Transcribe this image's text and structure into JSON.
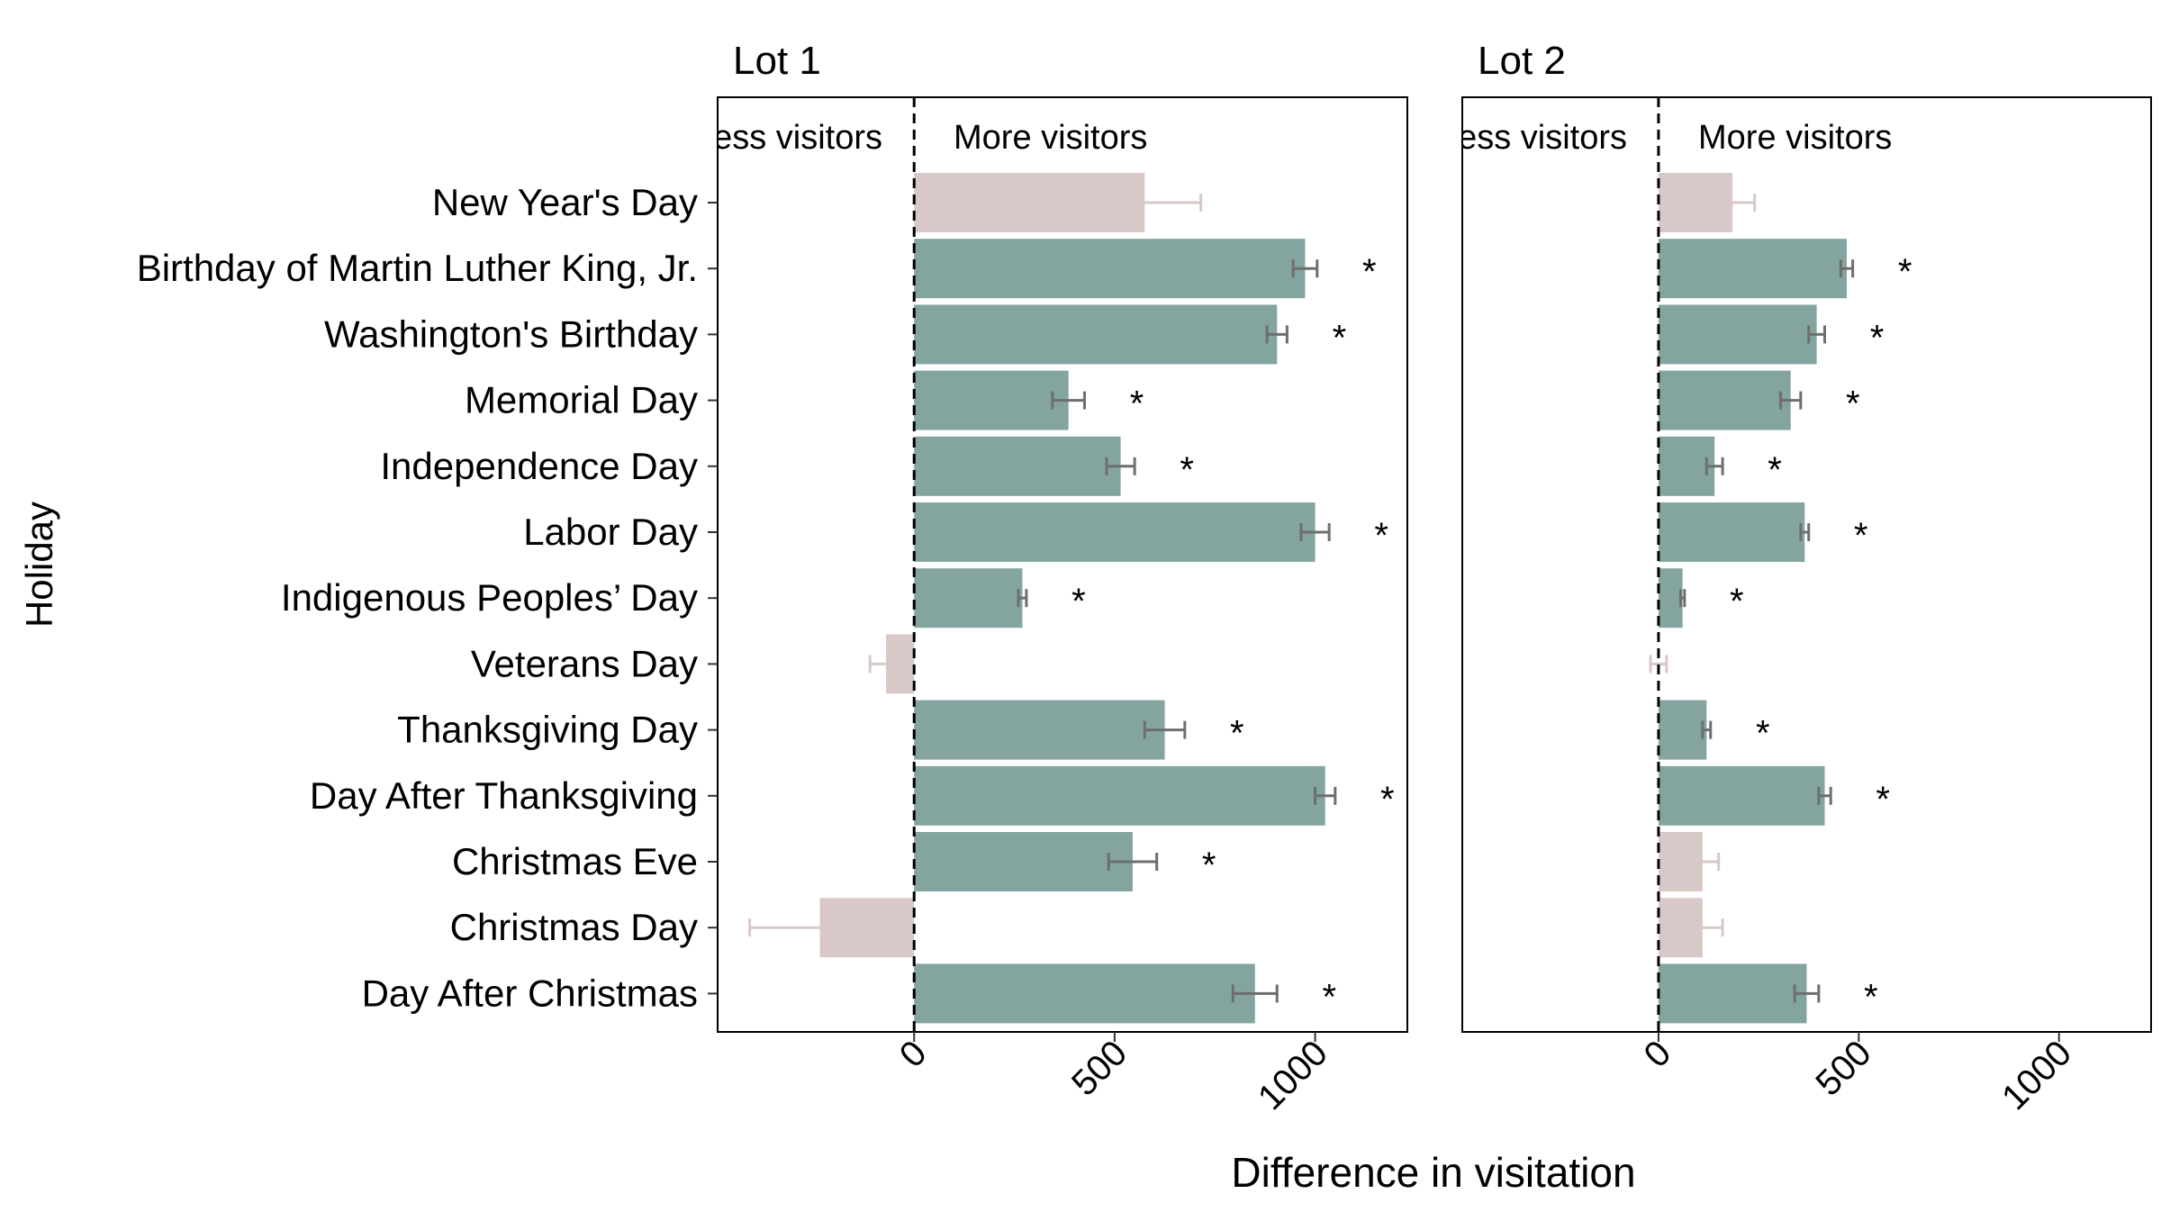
{
  "chart_data": {
    "type": "bar",
    "orientation": "horizontal",
    "ylabel": "Holiday",
    "xlabel": "Difference in visitation",
    "xlim": [
      -490,
      1230
    ],
    "xticks": [
      0,
      500,
      1000
    ],
    "grid": false,
    "legend": "none",
    "region_labels": {
      "left": "Less visitors",
      "right": "More visitors"
    },
    "categories": [
      "New Year's Day",
      "Birthday of Martin Luther King, Jr.",
      "Washington's Birthday",
      "Memorial Day",
      "Independence Day",
      "Labor Day",
      "Indigenous Peoples’ Day",
      "Veterans Day",
      "Thanksgiving Day",
      "Day After Thanksgiving",
      "Christmas Eve",
      "Christmas Day",
      "Day After Christmas"
    ],
    "colors": {
      "significant": "#84a59f",
      "not_significant": "#d8c8c7",
      "significant_error": "#6e6e6e",
      "not_significant_error": "#d8c8c7",
      "zero_line": "#000000"
    },
    "panels": [
      {
        "title": "Lot 1",
        "values": [
          575,
          975,
          905,
          385,
          515,
          1000,
          270,
          -70,
          625,
          1025,
          545,
          -235,
          850
        ],
        "errors": [
          140,
          30,
          25,
          40,
          35,
          35,
          10,
          40,
          50,
          25,
          60,
          175,
          55
        ],
        "significant": [
          false,
          true,
          true,
          true,
          true,
          true,
          true,
          false,
          true,
          true,
          true,
          false,
          true
        ],
        "significance_marker": "*"
      },
      {
        "title": "Lot 2",
        "values": [
          185,
          470,
          395,
          330,
          140,
          365,
          60,
          0,
          120,
          415,
          110,
          110,
          370
        ],
        "errors": [
          55,
          15,
          20,
          25,
          20,
          10,
          5,
          20,
          10,
          15,
          40,
          50,
          30
        ],
        "significant": [
          false,
          true,
          true,
          true,
          true,
          true,
          true,
          false,
          true,
          true,
          false,
          false,
          true
        ],
        "significance_marker": "*"
      }
    ]
  }
}
